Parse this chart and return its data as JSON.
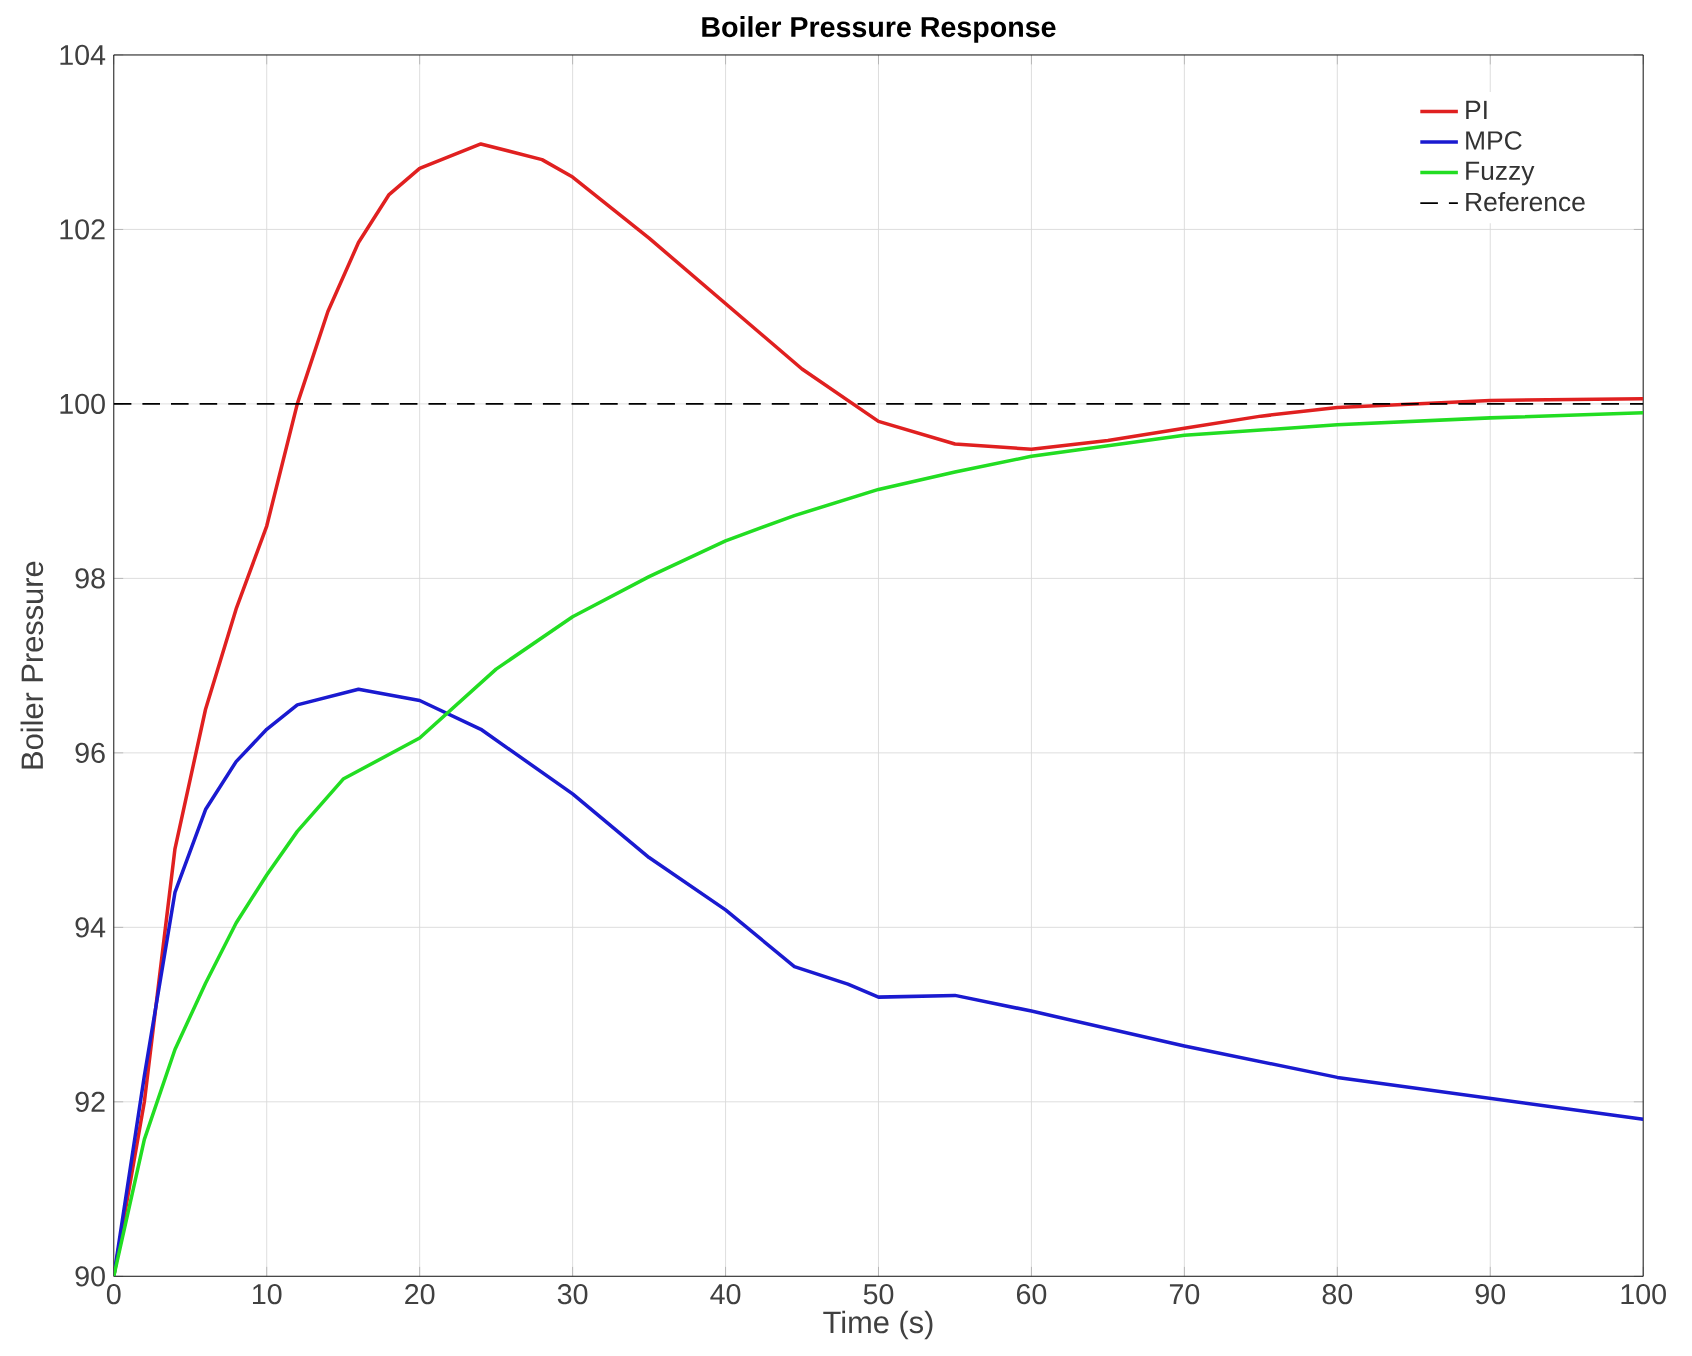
{
  "chart_data": {
    "type": "line",
    "title": "Boiler Pressure Response",
    "xlabel": "Time (s)",
    "ylabel": "Boiler Pressure",
    "xlim": [
      0,
      100
    ],
    "ylim": [
      90,
      104
    ],
    "xticks": [
      0,
      10,
      20,
      30,
      40,
      50,
      60,
      70,
      80,
      90,
      100
    ],
    "yticks": [
      90,
      92,
      94,
      96,
      98,
      100,
      102,
      104
    ],
    "grid": true,
    "legend": "top right",
    "series": [
      {
        "name": "PI",
        "color": "#e02020",
        "x": [
          0,
          2,
          4,
          6,
          8,
          10,
          12,
          14,
          16,
          18,
          20,
          24,
          28,
          30,
          35,
          40,
          45,
          50,
          55,
          60,
          65,
          70,
          75,
          80,
          90,
          100
        ],
        "values": [
          90,
          92.0,
          94.9,
          96.5,
          97.65,
          98.6,
          100,
          101.06,
          101.85,
          102.4,
          102.7,
          102.98,
          102.8,
          102.6,
          101.9,
          101.15,
          100.4,
          99.8,
          99.54,
          99.48,
          99.58,
          99.72,
          99.86,
          99.96,
          100.04,
          100.06
        ]
      },
      {
        "name": "MPC",
        "color": "#1a1ad0",
        "x": [
          0,
          2,
          4,
          6,
          8,
          10,
          12,
          16,
          20,
          24,
          30,
          35,
          40,
          44.5,
          48,
          50,
          55,
          60,
          70,
          80,
          90,
          100
        ],
        "values": [
          90,
          92.3,
          94.4,
          95.35,
          95.9,
          96.27,
          96.55,
          96.73,
          96.6,
          96.27,
          95.53,
          94.8,
          94.2,
          93.55,
          93.35,
          93.2,
          93.22,
          93.04,
          92.64,
          92.28,
          92.04,
          91.8
        ]
      },
      {
        "name": "Fuzzy",
        "color": "#22dd22",
        "x": [
          0,
          2,
          4,
          6,
          8,
          10,
          12,
          15,
          20,
          25,
          30,
          35,
          40,
          44.5,
          50,
          55,
          60,
          70,
          80,
          90,
          100
        ],
        "values": [
          90,
          91.57,
          92.6,
          93.36,
          94.05,
          94.6,
          95.1,
          95.7,
          96.17,
          96.96,
          97.56,
          98.02,
          98.43,
          98.72,
          99.02,
          99.22,
          99.4,
          99.64,
          99.76,
          99.84,
          99.9
        ]
      },
      {
        "name": "Reference",
        "color": "#000000",
        "line_style": "dashed",
        "x": [
          0,
          100
        ],
        "values": [
          100,
          100
        ]
      }
    ]
  }
}
